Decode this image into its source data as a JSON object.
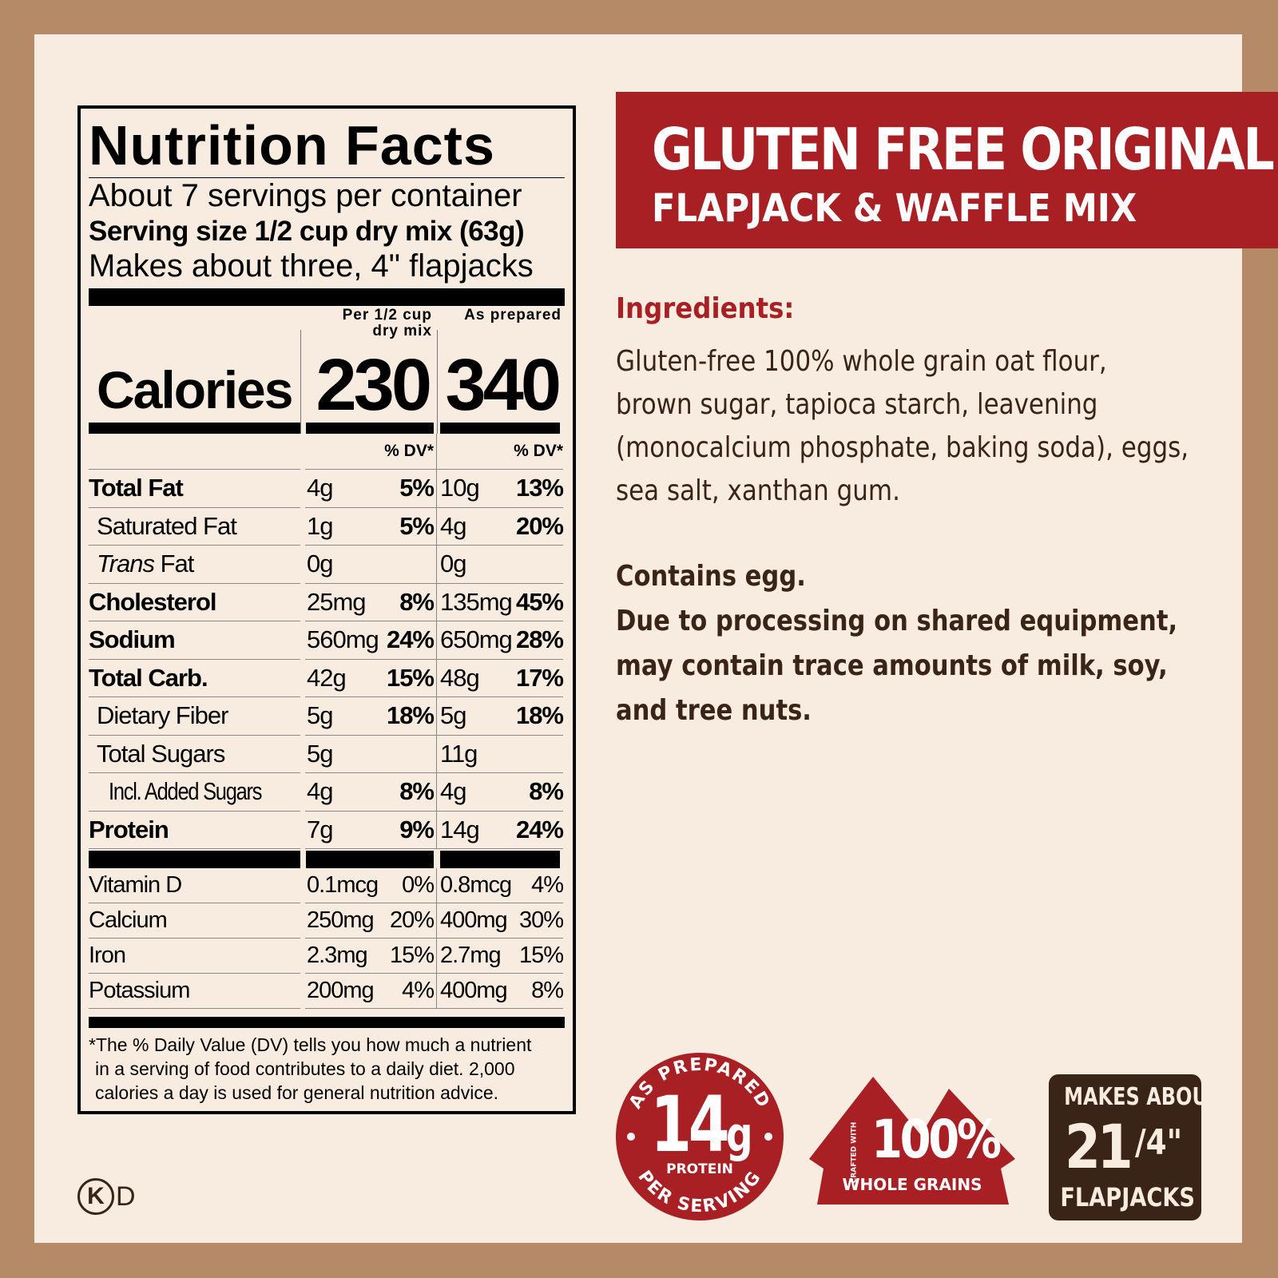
{
  "colors": {
    "background": "#b48b66",
    "panel": "#f7ecdf",
    "brand_red": "#a81f24",
    "dark_brown": "#3a2418"
  },
  "nutrition": {
    "title": "Nutrition Facts",
    "servings": "About 7 servings per container",
    "serving_size": "Serving size 1/2 cup dry mix (63g)",
    "makes": "Makes about three, 4\" flapjacks",
    "calories_label": "Calories",
    "col1_header": "Per 1/2 cup dry mix",
    "col2_header": "As prepared",
    "calories_dry": "230",
    "calories_prepared": "340",
    "dv_header": "% DV*",
    "rows": [
      {
        "name": "Total Fat",
        "style": "b",
        "dry": "4g",
        "dry_dv": "5%",
        "prep": "10g",
        "prep_dv": "13%"
      },
      {
        "name": "Saturated Fat",
        "style": "ind1",
        "dry": "1g",
        "dry_dv": "5%",
        "prep": "4g",
        "prep_dv": "20%"
      },
      {
        "name": "Trans Fat",
        "style": "ind1",
        "dry": "0g",
        "dry_dv": "",
        "prep": "0g",
        "prep_dv": ""
      },
      {
        "name": "Cholesterol",
        "style": "b",
        "dry": "25mg",
        "dry_dv": "8%",
        "prep": "135mg",
        "prep_dv": "45%"
      },
      {
        "name": "Sodium",
        "style": "b",
        "dry": "560mg",
        "dry_dv": "24%",
        "prep": "650mg",
        "prep_dv": "28%"
      },
      {
        "name": "Total Carb.",
        "style": "b",
        "dry": "42g",
        "dry_dv": "15%",
        "prep": "48g",
        "prep_dv": "17%"
      },
      {
        "name": "Dietary Fiber",
        "style": "ind1",
        "dry": "5g",
        "dry_dv": "18%",
        "prep": "5g",
        "prep_dv": "18%"
      },
      {
        "name": "Total Sugars",
        "style": "ind1",
        "dry": "5g",
        "dry_dv": "",
        "prep": "11g",
        "prep_dv": ""
      },
      {
        "name": "Incl. Added Sugars",
        "style": "ind2",
        "dry": "4g",
        "dry_dv": "8%",
        "prep": "4g",
        "prep_dv": "8%"
      },
      {
        "name": "Protein",
        "style": "b",
        "dry": "7g",
        "dry_dv": "9%",
        "prep": "14g",
        "prep_dv": "24%"
      }
    ],
    "vitamins": [
      {
        "name": "Vitamin D",
        "dry": "0.1mcg",
        "dry_dv": "0%",
        "prep": "0.8mcg",
        "prep_dv": "4%"
      },
      {
        "name": "Calcium",
        "dry": "250mg",
        "dry_dv": "20%",
        "prep": "400mg",
        "prep_dv": "30%"
      },
      {
        "name": "Iron",
        "dry": "2.3mg",
        "dry_dv": "15%",
        "prep": "2.7mg",
        "prep_dv": "15%"
      },
      {
        "name": "Potassium",
        "dry": "200mg",
        "dry_dv": "4%",
        "prep": "400mg",
        "prep_dv": "8%"
      }
    ],
    "footnote": [
      "*The % Daily Value (DV) tells you how much a nutrient",
      "in a serving of food contributes to a daily diet. 2,000",
      "calories a day is used for general nutrition advice."
    ]
  },
  "banner": {
    "title": "GLUTEN FREE ORIGINAL",
    "subtitle": "FLAPJACK & WAFFLE MIX"
  },
  "ingredients": {
    "heading": "Ingredients:",
    "lines": [
      "Gluten-free 100% whole grain oat flour,",
      "brown sugar, tapioca starch, leavening",
      "(monocalcium phosphate, baking soda), eggs,",
      "sea salt, xanthan gum."
    ],
    "allergen_lines": [
      "Contains egg.",
      "Due to processing on shared equipment,",
      "may contain trace amounts of milk, soy,",
      "and tree nuts."
    ]
  },
  "badges": {
    "protein": {
      "top_arc": "AS PREPARED",
      "amount": "14",
      "unit": "g",
      "label": "PROTEIN",
      "bottom_arc": "PER SERVING"
    },
    "grains": {
      "crafted": "CRAFTED WITH",
      "amount": "100%",
      "label": "WHOLE GRAINS"
    },
    "makes": {
      "top": "MAKES ABOUT",
      "count": "21",
      "size": "/4\"",
      "label": "FLAPJACKS"
    }
  },
  "kosher": {
    "symbol": "K",
    "suffix": "D"
  }
}
